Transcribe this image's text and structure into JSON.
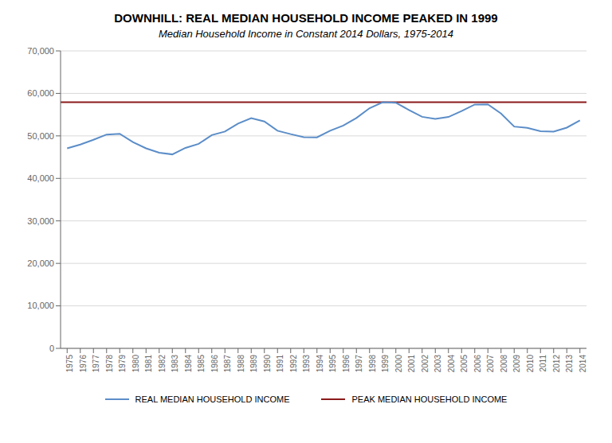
{
  "chart_data": {
    "type": "line",
    "title": "DOWNHILL: REAL MEDIAN HOUSEHOLD INCOME PEAKED IN 1999",
    "subtitle": "Median Household Income in Constant 2014 Dollars, 1975-2014",
    "x": [
      1975,
      1976,
      1977,
      1978,
      1979,
      1980,
      1981,
      1982,
      1983,
      1984,
      1985,
      1986,
      1987,
      1988,
      1989,
      1990,
      1991,
      1992,
      1993,
      1994,
      1995,
      1996,
      1997,
      1998,
      1999,
      2000,
      2001,
      2002,
      2003,
      2004,
      2005,
      2006,
      2007,
      2008,
      2009,
      2010,
      2011,
      2012,
      2013,
      2014
    ],
    "series": [
      {
        "name": "REAL MEDIAN HOUSEHOLD INCOME",
        "color": "#5b8dc8",
        "type": "line",
        "values": [
          47076,
          47958,
          49080,
          50316,
          50490,
          48545,
          47074,
          46058,
          45648,
          47180,
          48112,
          50196,
          51020,
          52910,
          54165,
          53383,
          51219,
          50419,
          49694,
          49654,
          51211,
          52413,
          54207,
          56524,
          57909,
          57790,
          56095,
          54487,
          53991,
          54452,
          55832,
          57381,
          57423,
          55268,
          52195,
          51892,
          51100,
          51017,
          51939,
          53657
        ]
      },
      {
        "name": "PEAK MEDIAN HOUSEHOLD INCOME",
        "color": "#8b1a1a",
        "type": "hline",
        "value": 57909
      }
    ],
    "xlim": [
      1974.5,
      2014.5
    ],
    "xticks": [
      1975,
      1976,
      1977,
      1978,
      1979,
      1980,
      1981,
      1982,
      1983,
      1984,
      1985,
      1986,
      1987,
      1988,
      1989,
      1990,
      1991,
      1992,
      1993,
      1994,
      1995,
      1996,
      1997,
      1998,
      1999,
      2000,
      2001,
      2002,
      2003,
      2004,
      2005,
      2006,
      2007,
      2008,
      2009,
      2010,
      2011,
      2012,
      2013,
      2014
    ],
    "ylim": [
      0,
      70000
    ],
    "yticks": [
      0,
      {
        "value": 10000,
        "label": "10,000"
      },
      {
        "value": 20000,
        "label": "20,000"
      },
      {
        "value": 30000,
        "label": "30,000"
      },
      {
        "value": 40000,
        "label": "40,000"
      },
      {
        "value": 50000,
        "label": "50,000"
      },
      {
        "value": 60000,
        "label": "60,000"
      },
      {
        "value": 70000,
        "label": "70,000"
      }
    ],
    "grid": true
  }
}
